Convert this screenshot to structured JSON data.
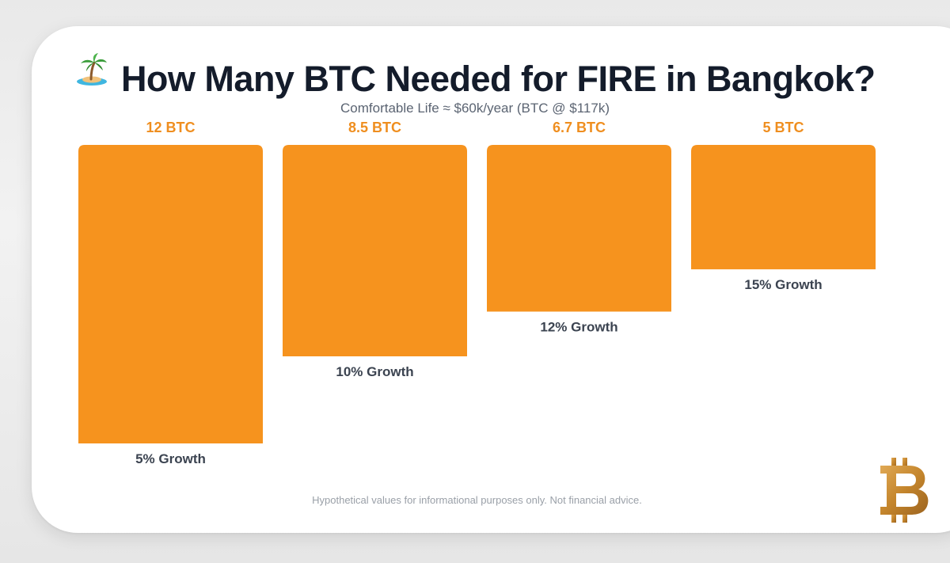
{
  "header": {
    "title": "How Many BTC Needed for FIRE in Bangkok?",
    "title_icon": "palm-tree-island-icon",
    "subtitle": "Comfortable Life ≈ $60k/year (BTC @ $117k)"
  },
  "footer": {
    "disclaimer": "Hypothetical values for informational purposes only. Not financial advice.",
    "logo_icon": "bitcoin-logo-icon"
  },
  "colors": {
    "bar": "#F6931E",
    "value_label": "#EF8E1F",
    "category_label": "#3B4350",
    "logo": "#C9892E"
  },
  "chart_data": {
    "type": "bar",
    "title": "How Many BTC Needed for FIRE in Bangkok?",
    "subtitle": "Comfortable Life ≈ $60k/year (BTC @ $117k)",
    "categories": [
      "5% Growth",
      "10% Growth",
      "12% Growth",
      "15% Growth"
    ],
    "values": [
      12,
      8.5,
      6.7,
      5
    ],
    "value_labels": [
      "12 BTC",
      "8.5 BTC",
      "6.7 BTC",
      "5 BTC"
    ],
    "xlabel": "",
    "ylabel": "",
    "ylim": [
      0,
      12
    ],
    "grid": false,
    "legend": "none"
  }
}
